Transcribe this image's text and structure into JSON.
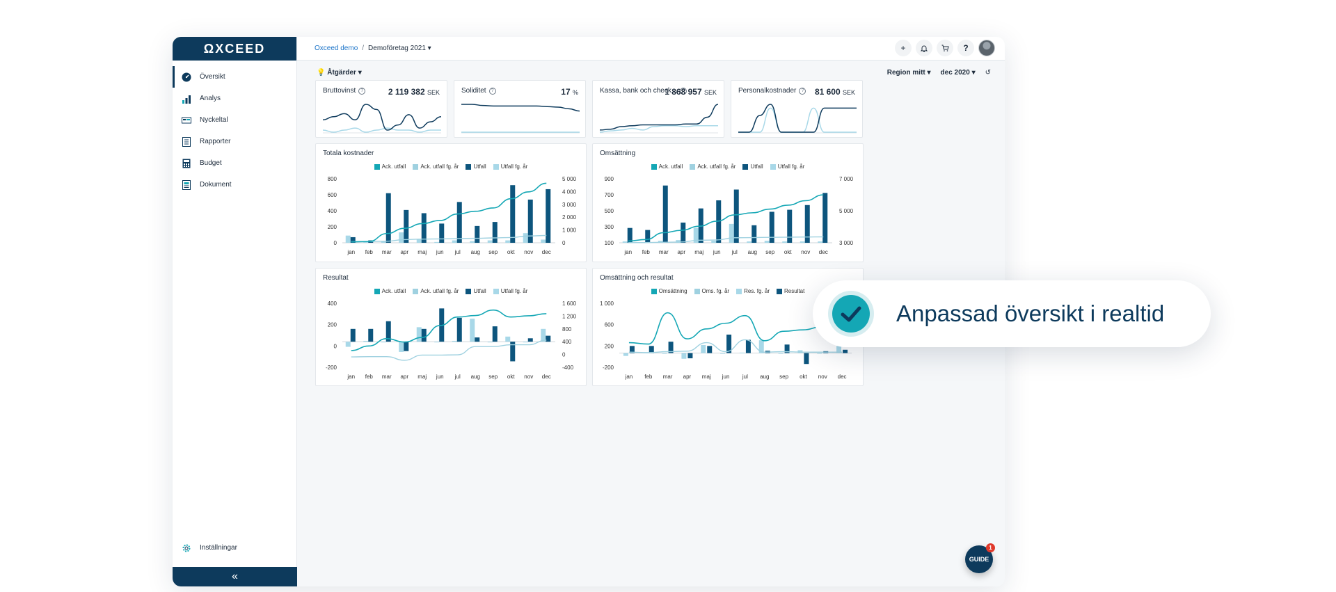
{
  "logo": "ΩXCEED",
  "breadcrumb": {
    "link": "Oxceed demo",
    "sep": "/",
    "current": "Demoföretag 2021 ▾"
  },
  "sidebar": {
    "items": [
      {
        "label": "Översikt",
        "icon": "dashboard-icon"
      },
      {
        "label": "Analys",
        "icon": "bar-chart-icon"
      },
      {
        "label": "Nyckeltal",
        "icon": "gauge-icon"
      },
      {
        "label": "Rapporter",
        "icon": "report-icon"
      },
      {
        "label": "Budget",
        "icon": "calculator-icon"
      },
      {
        "label": "Dokument",
        "icon": "document-icon"
      }
    ],
    "settings": "Inställningar",
    "collapse": "«"
  },
  "topbar_icons": [
    "plus-icon",
    "bell-icon",
    "cart-icon",
    "help-icon"
  ],
  "toolbar": {
    "actions": "Åtgärder ▾",
    "region": "Region mitt ▾",
    "period": "dec 2020 ▾",
    "refresh": "↺"
  },
  "kpis": [
    {
      "title": "Bruttovinst",
      "value": "2 119 382",
      "unit": "SEK"
    },
    {
      "title": "Soliditet",
      "value": "17",
      "unit": "%"
    },
    {
      "title": "Kassa, bank och check...",
      "value": "1 868 957",
      "unit": "SEK"
    },
    {
      "title": "Personalkostnader",
      "value": "81 600",
      "unit": "SEK"
    }
  ],
  "months": [
    "jan",
    "feb",
    "mar",
    "apr",
    "maj",
    "jun",
    "jul",
    "aug",
    "sep",
    "okt",
    "nov",
    "dec"
  ],
  "chart_data": [
    {
      "type": "bar",
      "title": "Totala kostnader",
      "legend": [
        "Ack. utfall",
        "Ack. utfall fg. år",
        "Utfall",
        "Utfall fg. år"
      ],
      "categories": [
        "jan",
        "feb",
        "mar",
        "apr",
        "maj",
        "jun",
        "jul",
        "aug",
        "sep",
        "okt",
        "nov",
        "dec"
      ],
      "series": [
        {
          "name": "Utfall",
          "values": [
            70,
            30,
            620,
            410,
            370,
            240,
            510,
            210,
            260,
            720,
            540,
            670
          ]
        },
        {
          "name": "Utfall fg. år",
          "values": [
            90,
            10,
            20,
            130,
            40,
            10,
            30,
            20,
            30,
            30,
            120,
            40
          ]
        },
        {
          "name": "Ack. utfall",
          "values": [
            70,
            100,
            720,
            1130,
            1500,
            1740,
            2250,
            2460,
            2720,
            3440,
            3980,
            4650
          ]
        },
        {
          "name": "Ack. utfall fg. år",
          "values": [
            90,
            100,
            120,
            250,
            290,
            300,
            330,
            350,
            380,
            410,
            530,
            570
          ]
        }
      ],
      "yticks": [
        "800",
        "600",
        "400",
        "200",
        "0"
      ],
      "y2ticks": [
        "5 000",
        "4 000",
        "3 000",
        "2 000",
        "1 000",
        "0"
      ],
      "ylim": [
        0,
        800
      ],
      "y2lim": [
        0,
        5000
      ]
    },
    {
      "type": "bar",
      "title": "Omsättning",
      "legend": [
        "Ack. utfall",
        "Ack. utfall fg. år",
        "Utfall",
        "Utfall fg. år"
      ],
      "categories": [
        "jan",
        "feb",
        "mar",
        "apr",
        "maj",
        "jun",
        "jul",
        "aug",
        "sep",
        "okt",
        "nov",
        "dec"
      ],
      "series": [
        {
          "name": "Utfall",
          "values": [
            220,
            190,
            850,
            300,
            510,
            630,
            790,
            260,
            460,
            490,
            560,
            740
          ]
        },
        {
          "name": "Utfall fg. år",
          "values": [
            20,
            10,
            30,
            40,
            220,
            30,
            280,
            20,
            30,
            20,
            20,
            20
          ]
        },
        {
          "name": "Ack. utfall",
          "values": [
            220,
            410,
            1260,
            1560,
            2070,
            2700,
            3490,
            3750,
            4210,
            4700,
            5260,
            6000
          ]
        },
        {
          "name": "Ack. utfall fg. år",
          "values": [
            20,
            30,
            60,
            100,
            320,
            350,
            630,
            650,
            680,
            700,
            720,
            740
          ]
        }
      ],
      "yticks": [
        "900",
        "700",
        "500",
        "300",
        "100"
      ],
      "y2ticks": [
        "7 000",
        "5 000",
        "3 000"
      ],
      "ylim": [
        0,
        950
      ],
      "y2lim": [
        0,
        8000
      ]
    },
    {
      "type": "bar",
      "title": "Resultat",
      "legend": [
        "Ack. utfall",
        "Ack. utfall fg. år",
        "Utfall",
        "Utfall fg. år"
      ],
      "categories": [
        "jan",
        "feb",
        "mar",
        "apr",
        "maj",
        "jun",
        "jul",
        "aug",
        "sep",
        "okt",
        "nov",
        "dec"
      ],
      "series": [
        {
          "name": "Utfall",
          "values": [
            150,
            150,
            240,
            -110,
            150,
            390,
            280,
            50,
            180,
            -230,
            40,
            70
          ]
        },
        {
          "name": "Utfall fg. år",
          "values": [
            -60,
            10,
            0,
            -120,
            170,
            0,
            10,
            270,
            0,
            60,
            0,
            150
          ]
        },
        {
          "name": "Ack. utfall",
          "values": [
            150,
            300,
            540,
            430,
            580,
            970,
            1250,
            1300,
            1480,
            1250,
            1290,
            1360
          ]
        },
        {
          "name": "Ack. utfall fg. år",
          "values": [
            -60,
            -50,
            -50,
            -170,
            0,
            0,
            10,
            280,
            280,
            340,
            340,
            490
          ]
        }
      ],
      "yticks": [
        "400",
        "200",
        "0",
        "-200"
      ],
      "y2ticks": [
        "1 600",
        "1 200",
        "800",
        "400",
        "0",
        "-400"
      ],
      "ylim": [
        -300,
        450
      ],
      "y2lim": [
        -400,
        1700
      ]
    },
    {
      "type": "bar",
      "title": "Omsättning och resultat",
      "legend": [
        "Omsättning",
        "Oms. fg. år",
        "Res. fg. år",
        "Resultat"
      ],
      "categories": [
        "jan",
        "feb",
        "mar",
        "apr",
        "maj",
        "jun",
        "jul",
        "aug",
        "sep",
        "okt",
        "nov",
        "dec"
      ],
      "series": [
        {
          "name": "Resultat",
          "values": [
            150,
            150,
            240,
            -110,
            150,
            390,
            280,
            50,
            180,
            -230,
            40,
            70
          ]
        },
        {
          "name": "Res. fg. år",
          "values": [
            -60,
            10,
            0,
            -120,
            170,
            0,
            10,
            270,
            0,
            60,
            0,
            150
          ]
        },
        {
          "name": "Omsättning",
          "values": [
            220,
            190,
            850,
            300,
            510,
            630,
            790,
            260,
            460,
            490,
            560,
            740
          ]
        },
        {
          "name": "Oms. fg. år",
          "values": [
            20,
            10,
            30,
            40,
            220,
            30,
            280,
            20,
            30,
            20,
            20,
            20
          ]
        }
      ],
      "yticks": [
        "1 000",
        "600",
        "200",
        "-200"
      ],
      "ylim": [
        -300,
        1050
      ]
    }
  ],
  "sparklines": [
    {
      "a": [
        30,
        33,
        36,
        30,
        45,
        40,
        20,
        25,
        35,
        22,
        28,
        33
      ],
      "b": [
        20,
        18,
        20,
        22,
        18,
        20,
        22,
        20,
        20,
        18,
        20,
        20
      ]
    },
    {
      "a": [
        60,
        60,
        58,
        57,
        57,
        57,
        57,
        57,
        56,
        55,
        52,
        48
      ],
      "b": [
        10,
        10,
        10,
        10,
        10,
        10,
        10,
        10,
        10,
        10,
        10,
        10
      ]
    },
    {
      "a": [
        10,
        12,
        18,
        20,
        22,
        22,
        22,
        22,
        24,
        24,
        40,
        70
      ],
      "b": [
        5,
        8,
        10,
        14,
        10,
        18,
        20,
        20,
        18,
        20,
        20,
        20
      ]
    },
    {
      "a": [
        5,
        5,
        50,
        80,
        5,
        5,
        5,
        5,
        70,
        70,
        70,
        70
      ],
      "b": [
        5,
        5,
        5,
        70,
        5,
        5,
        5,
        70,
        5,
        5,
        5,
        5
      ]
    }
  ],
  "colors": {
    "utfall": "#0d557d",
    "utfall_fg": "#a8d8e8",
    "ack": "#14a7b5",
    "ack_fg": "#9fd1e0",
    "navy": "#0d3a5c",
    "teal": "#14a7b5"
  },
  "callout": {
    "text": "Anpassad översikt i realtid"
  },
  "guide": {
    "label": "GUIDE",
    "badge": "1"
  }
}
